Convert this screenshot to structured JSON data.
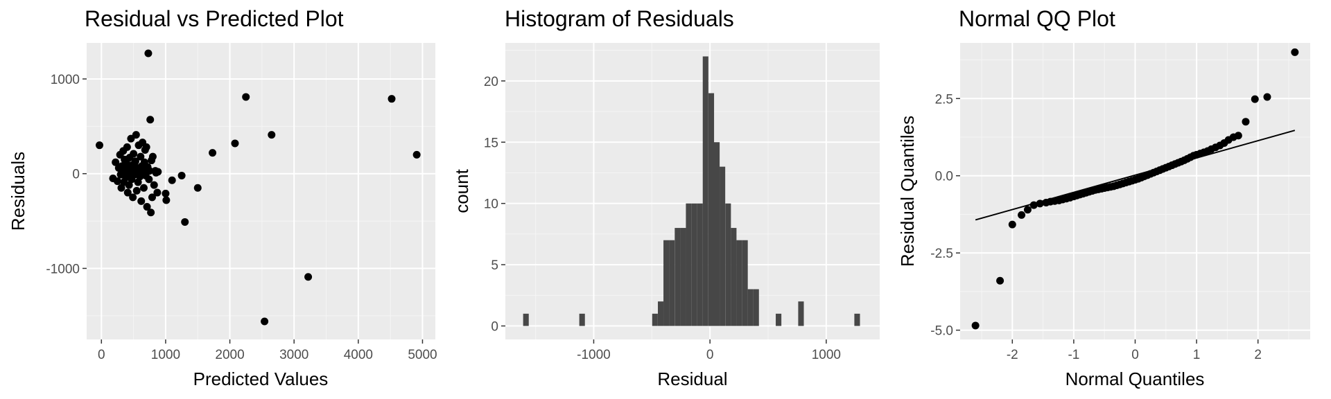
{
  "chart_data": [
    {
      "type": "scatter",
      "title": "Residual vs Predicted Plot",
      "xlabel": "Predicted Values",
      "ylabel": "Residuals",
      "xlim": [
        -230,
        5200
      ],
      "ylim": [
        -1750,
        1380
      ],
      "xticks": [
        0,
        1000,
        2000,
        3000,
        4000,
        5000
      ],
      "yticks": [
        -1000,
        0,
        1000
      ],
      "grid": true,
      "points": [
        [
          -30,
          300
        ],
        [
          180,
          -50
        ],
        [
          220,
          120
        ],
        [
          250,
          -80
        ],
        [
          270,
          60
        ],
        [
          290,
          200
        ],
        [
          300,
          -10
        ],
        [
          310,
          -150
        ],
        [
          320,
          80
        ],
        [
          330,
          30
        ],
        [
          340,
          240
        ],
        [
          350,
          -90
        ],
        [
          360,
          150
        ],
        [
          370,
          10
        ],
        [
          380,
          -40
        ],
        [
          390,
          110
        ],
        [
          400,
          280
        ],
        [
          410,
          -200
        ],
        [
          420,
          50
        ],
        [
          430,
          -120
        ],
        [
          440,
          170
        ],
        [
          450,
          0
        ],
        [
          460,
          370
        ],
        [
          470,
          -60
        ],
        [
          480,
          90
        ],
        [
          490,
          -250
        ],
        [
          500,
          210
        ],
        [
          510,
          20
        ],
        [
          520,
          -10
        ],
        [
          530,
          130
        ],
        [
          540,
          410
        ],
        [
          550,
          -180
        ],
        [
          560,
          60
        ],
        [
          570,
          -90
        ],
        [
          580,
          300
        ],
        [
          590,
          10
        ],
        [
          600,
          -30
        ],
        [
          610,
          180
        ],
        [
          620,
          -290
        ],
        [
          630,
          80
        ],
        [
          640,
          330
        ],
        [
          650,
          40
        ],
        [
          660,
          -150
        ],
        [
          670,
          120
        ],
        [
          680,
          250
        ],
        [
          690,
          -20
        ],
        [
          700,
          280
        ],
        [
          710,
          -350
        ],
        [
          720,
          70
        ],
        [
          730,
          1270
        ],
        [
          740,
          -60
        ],
        [
          750,
          30
        ],
        [
          760,
          570
        ],
        [
          770,
          -410
        ],
        [
          780,
          140
        ],
        [
          790,
          -250
        ],
        [
          800,
          180
        ],
        [
          820,
          -120
        ],
        [
          840,
          30
        ],
        [
          850,
          10
        ],
        [
          870,
          -200
        ],
        [
          880,
          20
        ],
        [
          1000,
          -210
        ],
        [
          1010,
          -280
        ],
        [
          1100,
          -70
        ],
        [
          1250,
          -20
        ],
        [
          1300,
          -510
        ],
        [
          1500,
          -150
        ],
        [
          1730,
          220
        ],
        [
          2080,
          320
        ],
        [
          2250,
          810
        ],
        [
          2540,
          -1560
        ],
        [
          2650,
          410
        ],
        [
          3220,
          -1090
        ],
        [
          4520,
          790
        ],
        [
          4910,
          200
        ]
      ]
    },
    {
      "type": "bar",
      "title": "Histogram of Residuals",
      "xlabel": "Residual",
      "ylabel": "count",
      "xlim": [
        -1760,
        1460
      ],
      "ylim": [
        -1.1,
        23.1
      ],
      "xticks": [
        -1000,
        0,
        1000
      ],
      "yticks": [
        0,
        5,
        10,
        15,
        20
      ],
      "grid": true,
      "bin_width": 48.3,
      "bins": [
        {
          "center": -1583,
          "count": 1
        },
        {
          "center": -1100,
          "count": 1
        },
        {
          "center": -473,
          "count": 1
        },
        {
          "center": -424,
          "count": 2
        },
        {
          "center": -376,
          "count": 7
        },
        {
          "center": -328,
          "count": 7
        },
        {
          "center": -279,
          "count": 8
        },
        {
          "center": -231,
          "count": 8
        },
        {
          "center": -183,
          "count": 10
        },
        {
          "center": -134,
          "count": 10
        },
        {
          "center": -86,
          "count": 10
        },
        {
          "center": -38,
          "count": 22
        },
        {
          "center": 11,
          "count": 19
        },
        {
          "center": 59,
          "count": 15
        },
        {
          "center": 107,
          "count": 13
        },
        {
          "center": 156,
          "count": 10
        },
        {
          "center": 204,
          "count": 8
        },
        {
          "center": 252,
          "count": 7
        },
        {
          "center": 301,
          "count": 7
        },
        {
          "center": 349,
          "count": 3
        },
        {
          "center": 397,
          "count": 3
        },
        {
          "center": 590,
          "count": 1
        },
        {
          "center": 783,
          "count": 2
        },
        {
          "center": 1266,
          "count": 1
        }
      ]
    },
    {
      "type": "scatter",
      "title": "Normal QQ Plot",
      "xlabel": "Normal Quantiles",
      "ylabel": "Residual Quantiles",
      "xlim": [
        -2.85,
        2.85
      ],
      "ylim": [
        -5.3,
        4.3
      ],
      "xticks": [
        -2,
        -1,
        0,
        1,
        2
      ],
      "yticks": [
        -5.0,
        -2.5,
        0.0,
        2.5
      ],
      "grid": true,
      "reference_line": {
        "x": [
          -2.6,
          2.6
        ],
        "y": [
          -1.43,
          1.47
        ]
      },
      "points": [
        [
          -2.6,
          -4.85
        ],
        [
          -2.2,
          -3.4
        ],
        [
          -2.0,
          -1.58
        ],
        [
          -1.85,
          -1.27
        ],
        [
          -1.75,
          -1.1
        ],
        [
          -1.65,
          -0.95
        ],
        [
          -1.55,
          -0.9
        ],
        [
          -1.45,
          -0.87
        ],
        [
          -1.38,
          -0.84
        ],
        [
          -1.31,
          -0.82
        ],
        [
          -1.24,
          -0.8
        ],
        [
          -1.18,
          -0.77
        ],
        [
          -1.12,
          -0.74
        ],
        [
          -1.06,
          -0.71
        ],
        [
          -1.0,
          -0.67
        ],
        [
          -0.95,
          -0.64
        ],
        [
          -0.9,
          -0.61
        ],
        [
          -0.85,
          -0.58
        ],
        [
          -0.8,
          -0.55
        ],
        [
          -0.75,
          -0.52
        ],
        [
          -0.7,
          -0.49
        ],
        [
          -0.65,
          -0.46
        ],
        [
          -0.6,
          -0.44
        ],
        [
          -0.55,
          -0.42
        ],
        [
          -0.5,
          -0.4
        ],
        [
          -0.45,
          -0.38
        ],
        [
          -0.4,
          -0.36
        ],
        [
          -0.35,
          -0.34
        ],
        [
          -0.3,
          -0.31
        ],
        [
          -0.25,
          -0.28
        ],
        [
          -0.2,
          -0.25
        ],
        [
          -0.15,
          -0.22
        ],
        [
          -0.1,
          -0.19
        ],
        [
          -0.05,
          -0.16
        ],
        [
          0.0,
          -0.13
        ],
        [
          0.05,
          -0.1
        ],
        [
          0.1,
          -0.06
        ],
        [
          0.15,
          -0.02
        ],
        [
          0.2,
          0.02
        ],
        [
          0.25,
          0.06
        ],
        [
          0.3,
          0.1
        ],
        [
          0.35,
          0.14
        ],
        [
          0.4,
          0.18
        ],
        [
          0.45,
          0.22
        ],
        [
          0.5,
          0.26
        ],
        [
          0.55,
          0.3
        ],
        [
          0.6,
          0.34
        ],
        [
          0.65,
          0.38
        ],
        [
          0.7,
          0.42
        ],
        [
          0.75,
          0.46
        ],
        [
          0.8,
          0.5
        ],
        [
          0.85,
          0.55
        ],
        [
          0.9,
          0.6
        ],
        [
          0.95,
          0.65
        ],
        [
          1.0,
          0.68
        ],
        [
          1.06,
          0.72
        ],
        [
          1.12,
          0.76
        ],
        [
          1.18,
          0.8
        ],
        [
          1.24,
          0.86
        ],
        [
          1.31,
          0.92
        ],
        [
          1.38,
          0.98
        ],
        [
          1.45,
          1.06
        ],
        [
          1.52,
          1.16
        ],
        [
          1.6,
          1.25
        ],
        [
          1.68,
          1.3
        ],
        [
          1.8,
          1.75
        ],
        [
          1.95,
          2.48
        ],
        [
          2.15,
          2.55
        ],
        [
          2.6,
          4.0
        ]
      ]
    }
  ]
}
